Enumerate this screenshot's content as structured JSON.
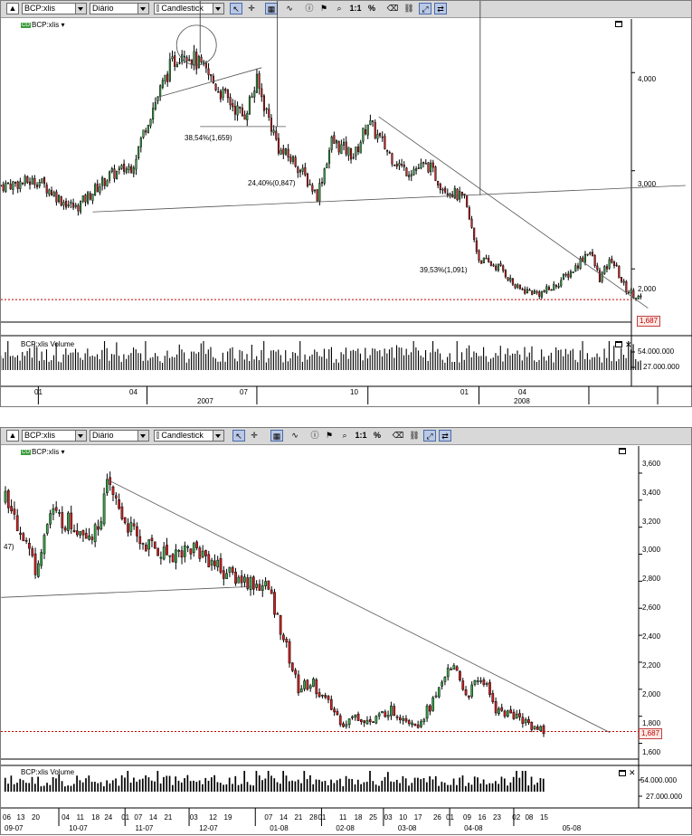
{
  "panels": [
    {
      "toolbar": {
        "symbol": "BCP:xlis",
        "period": "Diário",
        "chart_style": "Candlestick",
        "zoom_label": "1:1",
        "percent_label": "%"
      },
      "chart_title": "BCP:xlis",
      "volume_title": "BCP:xlis Volume",
      "price_tag": "1,687",
      "price_axis": [
        "4,000",
        "3,000",
        "2,000"
      ],
      "volume_axis": [
        "54.000.000",
        "27.000.000"
      ],
      "month_labels": [
        "01",
        "04",
        "07",
        "10",
        "01",
        "04"
      ],
      "year_labels": [
        "2007",
        "2008"
      ],
      "annotations": [
        "38,54%(1,659)",
        "24,40%(0,847)",
        "39,53%(1,091)"
      ]
    },
    {
      "toolbar": {
        "symbol": "BCP:xlis",
        "period": "Diário",
        "chart_style": "Candlestick",
        "zoom_label": "1:1",
        "percent_label": "%"
      },
      "chart_title": "BCP:xlis",
      "volume_title": "BCP:xlis Volume",
      "price_tag": "1,687",
      "price_axis": [
        "3,600",
        "3,400",
        "3,200",
        "3,000",
        "2,800",
        "2,600",
        "2,400",
        "2,200",
        "2,000",
        "1,800",
        "1,687",
        "1,600"
      ],
      "volume_axis": [
        "54.000.000",
        "27.000.000"
      ],
      "day_labels": [
        "06",
        "13",
        "20",
        "04",
        "11",
        "18",
        "24",
        "01",
        "07",
        "14",
        "21",
        "03",
        "12",
        "19",
        "07",
        "14",
        "21",
        "28",
        "01",
        "11",
        "18",
        "25",
        "03",
        "10",
        "17",
        "26",
        "01",
        "09",
        "16",
        "23",
        "02",
        "08",
        "15"
      ],
      "month_labels": [
        "09-07",
        "10-07",
        "11-07",
        "12-07",
        "01-08",
        "02-08",
        "03-08",
        "04-08",
        "05-08"
      ],
      "annotations": [
        "47)"
      ]
    }
  ],
  "chart_data": [
    {
      "type": "candlestick",
      "title": "BCP:xlis",
      "period": "Diário",
      "x_range": [
        "2006-12",
        "2008-05"
      ],
      "ylim": [
        1.55,
        4.5
      ],
      "close_series": [
        {
          "date": "2006-12",
          "value": 2.85
        },
        {
          "date": "2007-01",
          "value": 2.9
        },
        {
          "date": "2007-01-20",
          "value": 2.7
        },
        {
          "date": "2007-02",
          "value": 2.62
        },
        {
          "date": "2007-03",
          "value": 2.95
        },
        {
          "date": "2007-03-20",
          "value": 3.05
        },
        {
          "date": "2007-04",
          "value": 3.5
        },
        {
          "date": "2007-04-20",
          "value": 4.05
        },
        {
          "date": "2007-05",
          "value": 4.25
        },
        {
          "date": "2007-05-20",
          "value": 4.0
        },
        {
          "date": "2007-06",
          "value": 3.8
        },
        {
          "date": "2007-06-20",
          "value": 3.55
        },
        {
          "date": "2007-07",
          "value": 3.9
        },
        {
          "date": "2007-07-20",
          "value": 3.2
        },
        {
          "date": "2007-08",
          "value": 3.1
        },
        {
          "date": "2007-08-20",
          "value": 2.75
        },
        {
          "date": "2007-09",
          "value": 3.3
        },
        {
          "date": "2007-09-20",
          "value": 3.15
        },
        {
          "date": "2007-10",
          "value": 3.5
        },
        {
          "date": "2007-10-20",
          "value": 3.15
        },
        {
          "date": "2007-11",
          "value": 3.0
        },
        {
          "date": "2007-11-20",
          "value": 3.05
        },
        {
          "date": "2007-12",
          "value": 2.85
        },
        {
          "date": "2007-12-20",
          "value": 2.7
        },
        {
          "date": "2008-01",
          "value": 2.1
        },
        {
          "date": "2008-01-20",
          "value": 2.0
        },
        {
          "date": "2008-02",
          "value": 1.8
        },
        {
          "date": "2008-02-20",
          "value": 1.75
        },
        {
          "date": "2008-03",
          "value": 1.8
        },
        {
          "date": "2008-03-20",
          "value": 2.0
        },
        {
          "date": "2008-04",
          "value": 2.2
        },
        {
          "date": "2008-04-10",
          "value": 1.9
        },
        {
          "date": "2008-04-20",
          "value": 2.1
        },
        {
          "date": "2008-05",
          "value": 1.8
        },
        {
          "date": "2008-05-15",
          "value": 1.687
        }
      ],
      "last_price": 1.687,
      "volume_axis_ticks": [
        27000000,
        54000000
      ]
    },
    {
      "type": "candlestick",
      "title": "BCP:xlis",
      "period": "Diário",
      "x_range": [
        "2007-09-06",
        "2008-05-15"
      ],
      "ylim": [
        1.55,
        3.68
      ],
      "close_series": [
        {
          "date": "2007-09-06",
          "value": 3.4
        },
        {
          "date": "2007-09-13",
          "value": 3.2
        },
        {
          "date": "2007-09-20",
          "value": 2.9
        },
        {
          "date": "2007-09-27",
          "value": 3.3
        },
        {
          "date": "2007-10-04",
          "value": 3.25
        },
        {
          "date": "2007-10-11",
          "value": 3.2
        },
        {
          "date": "2007-10-18",
          "value": 3.15
        },
        {
          "date": "2007-10-24",
          "value": 3.5
        },
        {
          "date": "2007-11-01",
          "value": 3.25
        },
        {
          "date": "2007-11-07",
          "value": 3.1
        },
        {
          "date": "2007-11-14",
          "value": 3.05
        },
        {
          "date": "2007-11-21",
          "value": 3.0
        },
        {
          "date": "2007-12-03",
          "value": 3.05
        },
        {
          "date": "2007-12-12",
          "value": 2.95
        },
        {
          "date": "2007-12-19",
          "value": 2.85
        },
        {
          "date": "2008-01-07",
          "value": 2.75
        },
        {
          "date": "2008-01-14",
          "value": 2.4
        },
        {
          "date": "2008-01-21",
          "value": 2.0
        },
        {
          "date": "2008-01-28",
          "value": 2.05
        },
        {
          "date": "2008-02-01",
          "value": 1.95
        },
        {
          "date": "2008-02-11",
          "value": 1.75
        },
        {
          "date": "2008-02-18",
          "value": 1.8
        },
        {
          "date": "2008-02-25",
          "value": 1.75
        },
        {
          "date": "2008-03-03",
          "value": 1.85
        },
        {
          "date": "2008-03-10",
          "value": 1.8
        },
        {
          "date": "2008-03-17",
          "value": 1.75
        },
        {
          "date": "2008-03-26",
          "value": 1.95
        },
        {
          "date": "2008-04-01",
          "value": 2.2
        },
        {
          "date": "2008-04-09",
          "value": 1.95
        },
        {
          "date": "2008-04-16",
          "value": 2.1
        },
        {
          "date": "2008-04-23",
          "value": 1.85
        },
        {
          "date": "2008-05-02",
          "value": 1.8
        },
        {
          "date": "2008-05-08",
          "value": 1.75
        },
        {
          "date": "2008-05-15",
          "value": 1.687
        }
      ],
      "last_price": 1.687,
      "volume_axis_ticks": [
        27000000,
        54000000
      ]
    }
  ]
}
